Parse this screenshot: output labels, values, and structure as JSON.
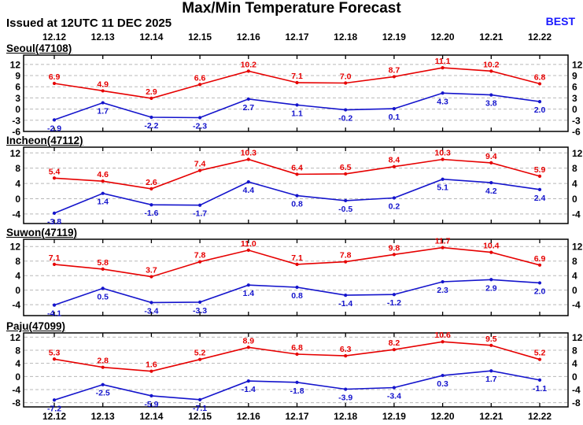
{
  "header": {
    "title": "Max/Min Temperature Forecast",
    "issued": "Issued at 12UTC 11 DEC 2025",
    "model_label": "BEST"
  },
  "colors": {
    "tmax": "#e60000",
    "tmin": "#1414cc",
    "model_link": "#1a1aff",
    "grid": "#b8b8b8",
    "axis": "#000000"
  },
  "chart_data": [
    {
      "type": "line",
      "station": "Seoul(47108)",
      "title": "Seoul(47108)",
      "xlabel": "",
      "ylabel": "",
      "grid": true,
      "legend_position": "none",
      "categories": [
        "12.12",
        "12.13",
        "12.14",
        "12.15",
        "12.16",
        "12.17",
        "12.18",
        "12.19",
        "12.20",
        "12.21",
        "12.22"
      ],
      "yticks": [
        -6,
        -3,
        0,
        3,
        6,
        9,
        12
      ],
      "ylim": [
        -6,
        14.5
      ],
      "series": [
        {
          "name": "Tmax",
          "color_key": "tmax",
          "values": [
            6.9,
            4.9,
            2.9,
            6.6,
            10.2,
            7.1,
            7.0,
            8.7,
            11.1,
            10.2,
            6.8
          ]
        },
        {
          "name": "Tmin",
          "color_key": "tmin",
          "values": [
            -2.9,
            1.7,
            -2.2,
            -2.3,
            2.7,
            1.1,
            -0.2,
            0.1,
            4.3,
            3.8,
            2.0
          ]
        }
      ]
    },
    {
      "type": "line",
      "station": "Incheon(47112)",
      "title": "Incheon(47112)",
      "xlabel": "",
      "ylabel": "",
      "grid": true,
      "legend_position": "none",
      "categories": [
        "12.12",
        "12.13",
        "12.14",
        "12.15",
        "12.16",
        "12.17",
        "12.18",
        "12.19",
        "12.20",
        "12.21",
        "12.22"
      ],
      "yticks": [
        -4,
        0,
        4,
        8,
        12
      ],
      "ylim": [
        -6.5,
        13.5
      ],
      "series": [
        {
          "name": "Tmax",
          "color_key": "tmax",
          "values": [
            5.4,
            4.6,
            2.6,
            7.4,
            10.3,
            6.4,
            6.5,
            8.4,
            10.3,
            9.4,
            5.9
          ]
        },
        {
          "name": "Tmin",
          "color_key": "tmin",
          "values": [
            -3.8,
            1.4,
            -1.6,
            -1.7,
            4.4,
            0.8,
            -0.5,
            0.2,
            5.1,
            4.2,
            2.4
          ]
        }
      ]
    },
    {
      "type": "line",
      "station": "Suwon(47119)",
      "title": "Suwon(47119)",
      "xlabel": "",
      "ylabel": "",
      "grid": true,
      "legend_position": "none",
      "categories": [
        "12.12",
        "12.13",
        "12.14",
        "12.15",
        "12.16",
        "12.17",
        "12.18",
        "12.19",
        "12.20",
        "12.21",
        "12.22"
      ],
      "yticks": [
        -4,
        0,
        4,
        8,
        12
      ],
      "ylim": [
        -7,
        14
      ],
      "series": [
        {
          "name": "Tmax",
          "color_key": "tmax",
          "values": [
            7.1,
            5.8,
            3.7,
            7.8,
            11.0,
            7.1,
            7.8,
            9.8,
            11.7,
            10.4,
            6.9
          ]
        },
        {
          "name": "Tmin",
          "color_key": "tmin",
          "values": [
            -4.1,
            0.5,
            -3.4,
            -3.3,
            1.4,
            0.8,
            -1.4,
            -1.2,
            2.3,
            2.9,
            2.0
          ]
        }
      ]
    },
    {
      "type": "line",
      "station": "Paju(47099)",
      "title": "Paju(47099)",
      "xlabel": "",
      "ylabel": "",
      "grid": true,
      "legend_position": "none",
      "categories": [
        "12.12",
        "12.13",
        "12.14",
        "12.15",
        "12.16",
        "12.17",
        "12.18",
        "12.19",
        "12.20",
        "12.21",
        "12.22"
      ],
      "yticks": [
        -8,
        -4,
        0,
        4,
        8,
        12
      ],
      "ylim": [
        -9.3,
        13.3
      ],
      "series": [
        {
          "name": "Tmax",
          "color_key": "tmax",
          "values": [
            5.3,
            2.8,
            1.6,
            5.2,
            8.9,
            6.8,
            6.3,
            8.2,
            10.6,
            9.5,
            5.2
          ]
        },
        {
          "name": "Tmin",
          "color_key": "tmin",
          "values": [
            -7.2,
            -2.5,
            -5.9,
            -7.1,
            -1.4,
            -1.8,
            -3.9,
            -3.4,
            0.3,
            1.7,
            -1.1
          ]
        }
      ]
    }
  ]
}
